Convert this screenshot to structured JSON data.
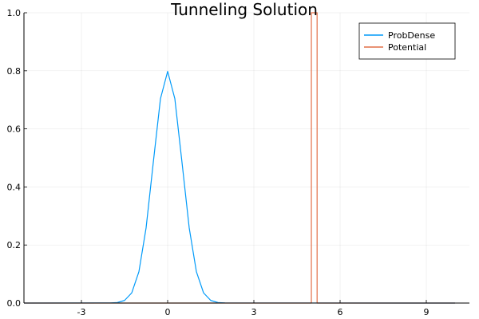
{
  "chart_data": {
    "type": "line",
    "title": "Tunneling Solution",
    "xlabel": "",
    "ylabel": "",
    "xlim": [
      -5.0,
      10.5
    ],
    "ylim": [
      0.0,
      1.0
    ],
    "xticks": [
      -3,
      0,
      3,
      6,
      9
    ],
    "yticks": [
      0.0,
      0.2,
      0.4,
      0.6,
      0.8,
      1.0
    ],
    "xtick_labels": [
      "-3",
      "0",
      "3",
      "6",
      "9"
    ],
    "ytick_labels": [
      "0.0",
      "0.2",
      "0.4",
      "0.6",
      "0.8",
      "1.0"
    ],
    "grid": true,
    "legend_position": "top-right",
    "series": [
      {
        "name": "ProbDense",
        "color": "#009af9",
        "x": [
          -5.0,
          -2.0,
          -1.75,
          -1.5,
          -1.25,
          -1.0,
          -0.75,
          -0.5,
          -0.25,
          0.0,
          0.25,
          0.5,
          0.75,
          1.0,
          1.25,
          1.5,
          1.75,
          2.0,
          10.0
        ],
        "y": [
          0.0,
          0.0003,
          0.0017,
          0.0089,
          0.035,
          0.108,
          0.259,
          0.484,
          0.704,
          0.798,
          0.704,
          0.484,
          0.259,
          0.108,
          0.035,
          0.0089,
          0.0017,
          0.0003,
          0.0
        ]
      },
      {
        "name": "Potential",
        "color": "#e26f46",
        "x": [
          -5.0,
          5.0,
          5.0,
          5.2,
          5.2,
          10.0
        ],
        "y": [
          0.0,
          0.0,
          1.0,
          1.0,
          0.0,
          0.0
        ]
      }
    ]
  }
}
